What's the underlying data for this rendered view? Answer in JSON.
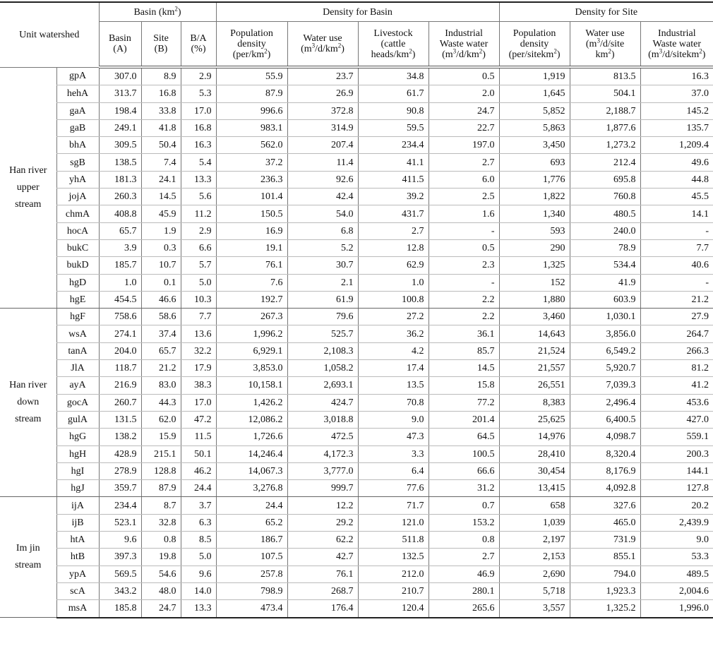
{
  "header": {
    "unit_watershed": "Unit watershed",
    "basin_group": "Basin (km2)",
    "density_basin_group": "Density for Basin",
    "density_site_group": "Density for Site",
    "columns": [
      "Basin (A)",
      "Site (B)",
      "B/A (%)",
      "Population density (per/km2)",
      "Water use (m3/d/km2)",
      "Livestock (cattle heads/km2)",
      "Industrial Waste water (m3/d/km2)",
      "Population density (per/sitekm2)",
      "Water use (m3/d/site km2)",
      "Industrial Waste water (m3/d/sitekm2)"
    ]
  },
  "groups": [
    {
      "label": "Han river upper stream",
      "rows": [
        [
          "gpA",
          "307.0",
          "8.9",
          "2.9",
          "55.9",
          "23.7",
          "34.8",
          "0.5",
          "1,919",
          "813.5",
          "16.3"
        ],
        [
          "hehA",
          "313.7",
          "16.8",
          "5.3",
          "87.9",
          "26.9",
          "61.7",
          "2.0",
          "1,645",
          "504.1",
          "37.0"
        ],
        [
          "gaA",
          "198.4",
          "33.8",
          "17.0",
          "996.6",
          "372.8",
          "90.8",
          "24.7",
          "5,852",
          "2,188.7",
          "145.2"
        ],
        [
          "gaB",
          "249.1",
          "41.8",
          "16.8",
          "983.1",
          "314.9",
          "59.5",
          "22.7",
          "5,863",
          "1,877.6",
          "135.7"
        ],
        [
          "bhA",
          "309.5",
          "50.4",
          "16.3",
          "562.0",
          "207.4",
          "234.4",
          "197.0",
          "3,450",
          "1,273.2",
          "1,209.4"
        ],
        [
          "sgB",
          "138.5",
          "7.4",
          "5.4",
          "37.2",
          "11.4",
          "41.1",
          "2.7",
          "693",
          "212.4",
          "49.6"
        ],
        [
          "yhA",
          "181.3",
          "24.1",
          "13.3",
          "236.3",
          "92.6",
          "411.5",
          "6.0",
          "1,776",
          "695.8",
          "44.8"
        ],
        [
          "jojA",
          "260.3",
          "14.5",
          "5.6",
          "101.4",
          "42.4",
          "39.2",
          "2.5",
          "1,822",
          "760.8",
          "45.5"
        ],
        [
          "chmA",
          "408.8",
          "45.9",
          "11.2",
          "150.5",
          "54.0",
          "431.7",
          "1.6",
          "1,340",
          "480.5",
          "14.1"
        ],
        [
          "hocA",
          "65.7",
          "1.9",
          "2.9",
          "16.9",
          "6.8",
          "2.7",
          "-",
          "593",
          "240.0",
          "-"
        ],
        [
          "bukC",
          "3.9",
          "0.3",
          "6.6",
          "19.1",
          "5.2",
          "12.8",
          "0.5",
          "290",
          "78.9",
          "7.7"
        ],
        [
          "bukD",
          "185.7",
          "10.7",
          "5.7",
          "76.1",
          "30.7",
          "62.9",
          "2.3",
          "1,325",
          "534.4",
          "40.6"
        ],
        [
          "hgD",
          "1.0",
          "0.1",
          "5.0",
          "7.6",
          "2.1",
          "1.0",
          "-",
          "152",
          "41.9",
          "-"
        ],
        [
          "hgE",
          "454.5",
          "46.6",
          "10.3",
          "192.7",
          "61.9",
          "100.8",
          "2.2",
          "1,880",
          "603.9",
          "21.2"
        ]
      ]
    },
    {
      "label": "Han river down stream",
      "rows": [
        [
          "hgF",
          "758.6",
          "58.6",
          "7.7",
          "267.3",
          "79.6",
          "27.2",
          "2.2",
          "3,460",
          "1,030.1",
          "27.9"
        ],
        [
          "wsA",
          "274.1",
          "37.4",
          "13.6",
          "1,996.2",
          "525.7",
          "36.2",
          "36.1",
          "14,643",
          "3,856.0",
          "264.7"
        ],
        [
          "tanA",
          "204.0",
          "65.7",
          "32.2",
          "6,929.1",
          "2,108.3",
          "4.2",
          "85.7",
          "21,524",
          "6,549.2",
          "266.3"
        ],
        [
          "JlA",
          "118.7",
          "21.2",
          "17.9",
          "3,853.0",
          "1,058.2",
          "17.4",
          "14.5",
          "21,557",
          "5,920.7",
          "81.2"
        ],
        [
          "ayA",
          "216.9",
          "83.0",
          "38.3",
          "10,158.1",
          "2,693.1",
          "13.5",
          "15.8",
          "26,551",
          "7,039.3",
          "41.2"
        ],
        [
          "gocA",
          "260.7",
          "44.3",
          "17.0",
          "1,426.2",
          "424.7",
          "70.8",
          "77.2",
          "8,383",
          "2,496.4",
          "453.6"
        ],
        [
          "gulA",
          "131.5",
          "62.0",
          "47.2",
          "12,086.2",
          "3,018.8",
          "9.0",
          "201.4",
          "25,625",
          "6,400.5",
          "427.0"
        ],
        [
          "hgG",
          "138.2",
          "15.9",
          "11.5",
          "1,726.6",
          "472.5",
          "47.3",
          "64.5",
          "14,976",
          "4,098.7",
          "559.1"
        ],
        [
          "hgH",
          "428.9",
          "215.1",
          "50.1",
          "14,246.4",
          "4,172.3",
          "3.3",
          "100.5",
          "28,410",
          "8,320.4",
          "200.3"
        ],
        [
          "hgI",
          "278.9",
          "128.8",
          "46.2",
          "14,067.3",
          "3,777.0",
          "6.4",
          "66.6",
          "30,454",
          "8,176.9",
          "144.1"
        ],
        [
          "hgJ",
          "359.7",
          "87.9",
          "24.4",
          "3,276.8",
          "999.7",
          "77.6",
          "31.2",
          "13,415",
          "4,092.8",
          "127.8"
        ]
      ]
    },
    {
      "label": "Im jin stream",
      "rows": [
        [
          "ijA",
          "234.4",
          "8.7",
          "3.7",
          "24.4",
          "12.2",
          "71.7",
          "0.7",
          "658",
          "327.6",
          "20.2"
        ],
        [
          "ijB",
          "523.1",
          "32.8",
          "6.3",
          "65.2",
          "29.2",
          "121.0",
          "153.2",
          "1,039",
          "465.0",
          "2,439.9"
        ],
        [
          "htA",
          "9.6",
          "0.8",
          "8.5",
          "186.7",
          "62.2",
          "511.8",
          "0.8",
          "2,197",
          "731.9",
          "9.0"
        ],
        [
          "htB",
          "397.3",
          "19.8",
          "5.0",
          "107.5",
          "42.7",
          "132.5",
          "2.7",
          "2,153",
          "855.1",
          "53.3"
        ],
        [
          "ypA",
          "569.5",
          "54.6",
          "9.6",
          "257.8",
          "76.1",
          "212.0",
          "46.9",
          "2,690",
          "794.0",
          "489.5"
        ],
        [
          "scA",
          "343.2",
          "48.0",
          "14.0",
          "798.9",
          "268.7",
          "210.7",
          "280.1",
          "5,718",
          "1,923.3",
          "2,004.6"
        ],
        [
          "msA",
          "185.8",
          "24.7",
          "13.3",
          "473.4",
          "176.4",
          "120.4",
          "265.6",
          "3,557",
          "1,325.2",
          "1,996.0"
        ]
      ]
    }
  ]
}
